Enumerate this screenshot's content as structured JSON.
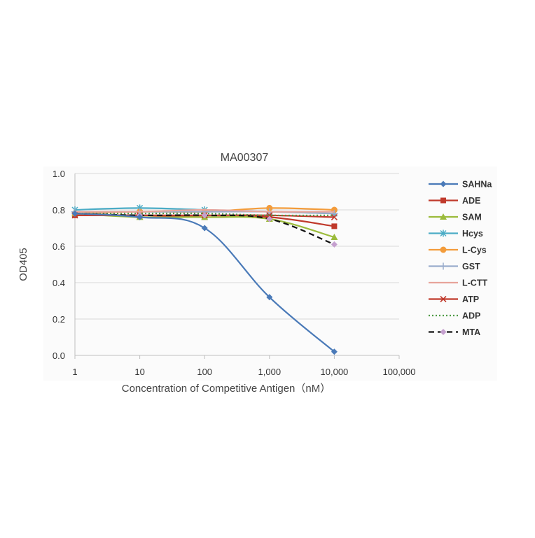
{
  "chart_data": {
    "type": "line",
    "title": "MA00307",
    "xlabel": "Concentration of Competitive Antigen（nM）",
    "ylabel": "OD405",
    "x_scale": "log",
    "xlim": [
      1,
      100000
    ],
    "ylim": [
      0.0,
      1.0
    ],
    "x_tick_labels": [
      "1",
      "10",
      "100",
      "1,000",
      "10,000",
      "100,000"
    ],
    "y_tick_labels": [
      "0.0",
      "0.2",
      "0.4",
      "0.6",
      "0.8",
      "1.0"
    ],
    "grid": "horizontal",
    "legend_position": "right",
    "x": [
      1,
      10,
      100,
      1000,
      10000
    ],
    "series": [
      {
        "name": "SAHNa",
        "color": "#4a7ab8",
        "marker": "diamond",
        "dash": "solid",
        "values": [
          0.78,
          0.76,
          0.7,
          0.32,
          0.02
        ]
      },
      {
        "name": "ADE",
        "color": "#c0392b",
        "marker": "square",
        "dash": "solid",
        "values": [
          0.77,
          0.77,
          0.76,
          0.76,
          0.71
        ]
      },
      {
        "name": "SAM",
        "color": "#9bbb3b",
        "marker": "triangle",
        "dash": "solid",
        "values": [
          0.78,
          0.76,
          0.76,
          0.75,
          0.65
        ]
      },
      {
        "name": "Hcys",
        "color": "#4bacc6",
        "marker": "star",
        "dash": "solid",
        "values": [
          0.8,
          0.81,
          0.8,
          0.79,
          0.78
        ]
      },
      {
        "name": "L-Cys",
        "color": "#f39c3b",
        "marker": "circle",
        "dash": "solid",
        "values": [
          0.78,
          0.79,
          0.79,
          0.81,
          0.8
        ]
      },
      {
        "name": "GST",
        "color": "#9aaccc",
        "marker": "plus",
        "dash": "solid",
        "values": [
          0.79,
          0.79,
          0.79,
          0.79,
          0.78
        ]
      },
      {
        "name": "L-CTT",
        "color": "#e8a49b",
        "marker": "none",
        "dash": "solid",
        "values": [
          0.79,
          0.79,
          0.8,
          0.79,
          0.79
        ]
      },
      {
        "name": "ATP",
        "color": "#c0392b",
        "marker": "x",
        "dash": "solid",
        "values": [
          0.77,
          0.77,
          0.77,
          0.77,
          0.76
        ]
      },
      {
        "name": "ADP",
        "color": "#4e9a45",
        "marker": "none",
        "dash": "dotted",
        "values": [
          0.78,
          0.78,
          0.78,
          0.77,
          0.77
        ]
      },
      {
        "name": "MTA",
        "color": "#111111",
        "marker": "diamond",
        "marker_color": "#c5a0cf",
        "dash": "dashed",
        "values": [
          0.78,
          0.77,
          0.77,
          0.75,
          0.61
        ]
      }
    ]
  }
}
